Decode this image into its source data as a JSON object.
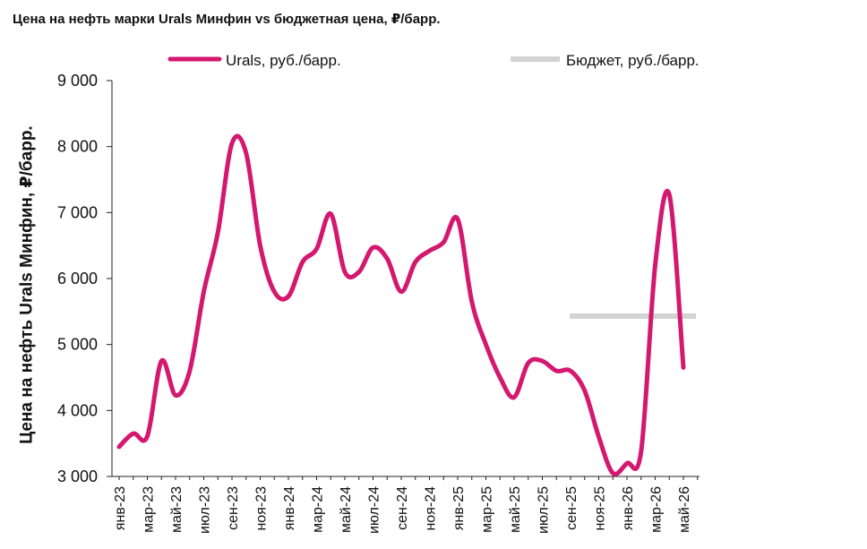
{
  "title": "Цена на нефть марки Urals Минфин vs бюджетная цена, ₽/барр.",
  "chart_data": {
    "type": "line",
    "ylabel": "Цена на нефть Urals Минфин, ₽/барр.",
    "ylim": [
      3000,
      9000
    ],
    "yticks": [
      3000,
      4000,
      5000,
      6000,
      7000,
      8000,
      9000
    ],
    "ytick_labels": [
      "3 000",
      "4 000",
      "5 000",
      "6 000",
      "7 000",
      "8 000",
      "9 000"
    ],
    "x_labels": [
      "янв-23",
      "мар-23",
      "май-23",
      "июл-23",
      "сен-23",
      "ноя-23",
      "янв-24",
      "мар-24",
      "май-24",
      "июл-24",
      "сен-24",
      "ноя-24",
      "янв-25",
      "мар-25",
      "май-25",
      "июл-25",
      "сен-25",
      "ноя-25",
      "янв-26",
      "мар-26",
      "май-26"
    ],
    "legend_position": "top",
    "series": [
      {
        "name": "Urals, руб./барр.",
        "color": "#d4176f",
        "x": [
          "янв-23",
          "фев-23",
          "мар-23",
          "апр-23",
          "май-23",
          "июн-23",
          "июл-23",
          "авг-23",
          "сен-23",
          "окт-23",
          "ноя-23",
          "дек-23",
          "янв-24",
          "фев-24",
          "мар-24",
          "апр-24",
          "май-24",
          "июн-24",
          "июл-24",
          "авг-24",
          "сен-24",
          "окт-24",
          "ноя-24",
          "дек-24",
          "янв-25",
          "фев-25",
          "мар-25",
          "апр-25",
          "май-25",
          "июн-25",
          "июл-25",
          "авг-25",
          "сен-25",
          "окт-25",
          "ноя-25",
          "дек-25",
          "янв-26",
          "фев-26",
          "мар-26",
          "апр-26",
          "май-26"
        ],
        "values": [
          3450,
          3650,
          3610,
          4750,
          4230,
          4600,
          5800,
          6700,
          8050,
          7900,
          6500,
          5800,
          5730,
          6250,
          6450,
          6980,
          6100,
          6100,
          6470,
          6300,
          5800,
          6250,
          6420,
          6550,
          6900,
          5650,
          5000,
          4500,
          4200,
          4720,
          4750,
          4600,
          4600,
          4300,
          3600,
          3050,
          3200,
          3380,
          6200,
          7270,
          4650
        ]
      },
      {
        "name": "Бюджет, руб./барр.",
        "color": "#d3d3d3",
        "x": [
          "сен-25",
          "май-26"
        ],
        "values": [
          5430,
          5430
        ]
      }
    ]
  }
}
